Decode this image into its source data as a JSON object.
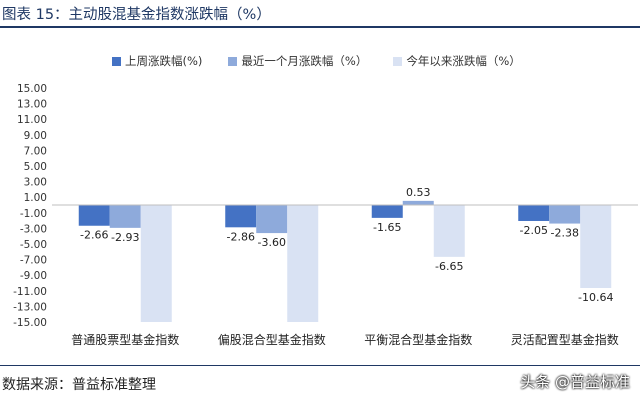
{
  "header": {
    "title": "图表 15：主动股混基金指数涨跌幅（%）"
  },
  "footer": {
    "source": "数据来源：普益标准整理",
    "watermark": "头条 @普益标准"
  },
  "chart_data": {
    "type": "bar",
    "categories": [
      "普通股票型基金指数",
      "偏股混合型基金指数",
      "平衡混合型基金指数",
      "灵活配置型基金指数"
    ],
    "series": [
      {
        "name": "上周涨跌幅(%)",
        "color": "#4472c4",
        "values": [
          -2.66,
          -2.86,
          -1.65,
          -2.05
        ],
        "labels": [
          "-2.66",
          "-2.86",
          "-1.65",
          "-2.05"
        ]
      },
      {
        "name": "最近一个月涨跌幅（%）",
        "color": "#8eaadb",
        "values": [
          -2.93,
          -3.6,
          0.53,
          -2.38
        ],
        "labels": [
          "-2.93",
          "-3.60",
          "0.53",
          "-2.38"
        ]
      },
      {
        "name": "今年以来涨跌幅（%）",
        "color": "#d9e2f3",
        "values": [
          -15.0,
          -15.0,
          -6.65,
          -10.64
        ],
        "labels": [
          "",
          "",
          "-6.65",
          "-10.64"
        ]
      }
    ],
    "yticks": [
      "15.00",
      "13.00",
      "11.00",
      "9.00",
      "7.00",
      "5.00",
      "3.00",
      "1.00",
      "-1.00",
      "-3.00",
      "-5.00",
      "-7.00",
      "-9.00",
      "-11.00",
      "-13.00",
      "-15.00"
    ],
    "ylim": [
      -15,
      15
    ],
    "grid": false,
    "legend_position": "top"
  }
}
